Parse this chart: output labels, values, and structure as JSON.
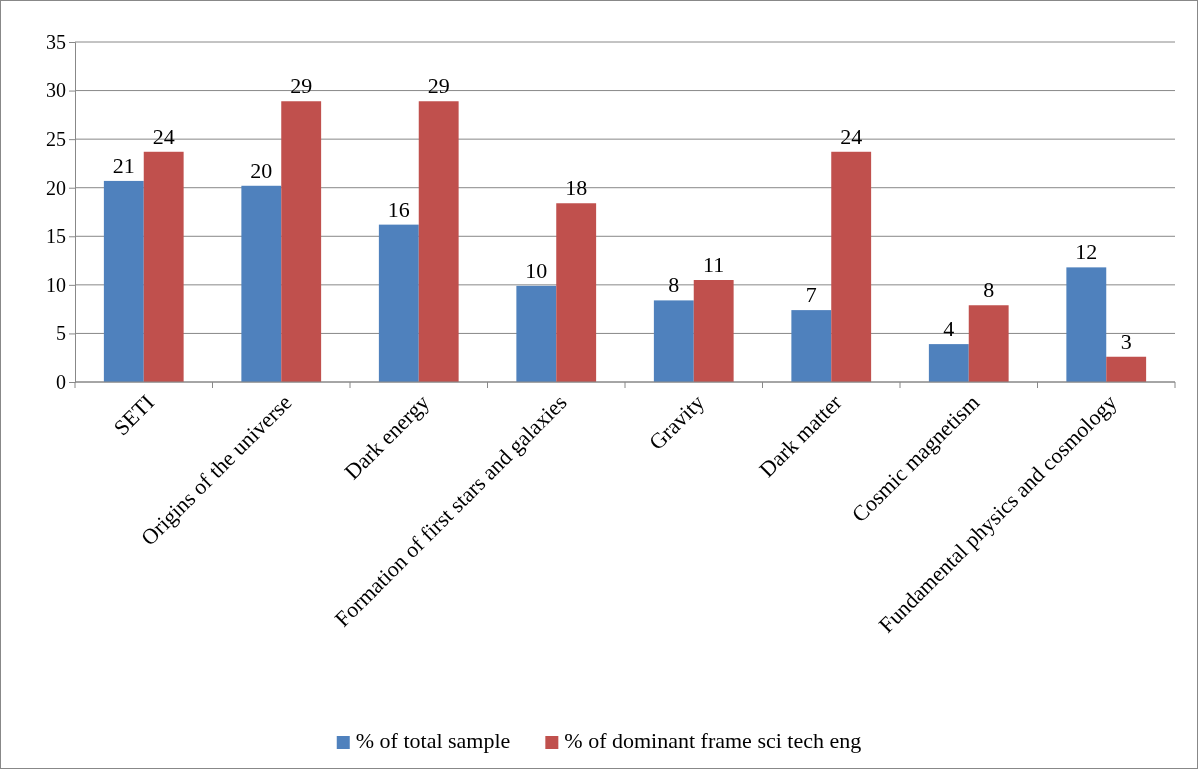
{
  "chart_data": {
    "type": "bar",
    "categories": [
      "SETI",
      "Origins of the universe",
      "Dark energy",
      "Formation of first stars and galaxies",
      "Gravity",
      "Dark matter",
      "Cosmic magnetism",
      "Fundamental physics and cosmology"
    ],
    "series": [
      {
        "name": "% of total sample",
        "color": "#4f81bd",
        "values": [
          20.7,
          20.2,
          16.2,
          9.9,
          8.4,
          7.4,
          3.9,
          11.8
        ],
        "value_labels": [
          "21",
          "20",
          "16",
          "10",
          "8",
          "7",
          "4",
          "12"
        ]
      },
      {
        "name": "% of dominant frame sci tech eng",
        "color": "#c0504d",
        "values": [
          23.7,
          28.9,
          28.9,
          18.4,
          10.5,
          23.7,
          7.9,
          2.6
        ],
        "value_labels": [
          "24",
          "29",
          "29",
          "18",
          "11",
          "24",
          "8",
          "3"
        ]
      }
    ],
    "ylim": [
      0,
      35
    ],
    "yticks": [
      0,
      5,
      10,
      15,
      20,
      25,
      30,
      35
    ],
    "grid": "y",
    "legend": "bottom"
  }
}
